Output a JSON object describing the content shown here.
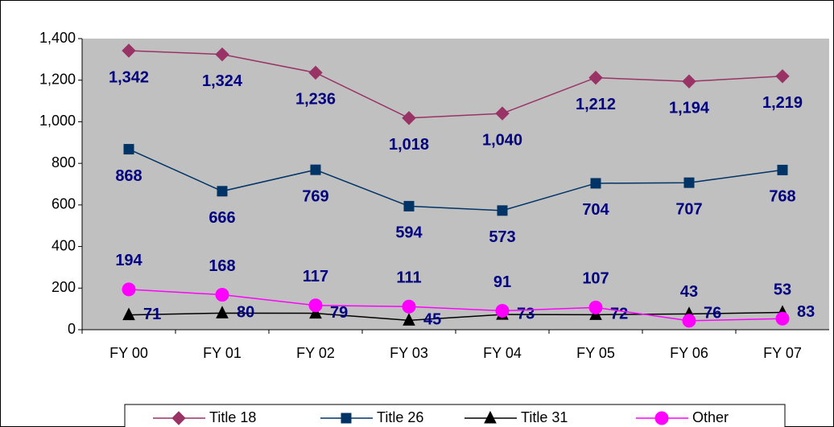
{
  "chart_data": {
    "type": "line",
    "categories": [
      "FY 00",
      "FY 01",
      "FY 02",
      "FY 03",
      "FY 04",
      "FY 05",
      "FY 06",
      "FY 07"
    ],
    "ylim": [
      0,
      1400
    ],
    "yticks": [
      0,
      200,
      400,
      600,
      800,
      {
        "value": 1000,
        "label": "1,000"
      },
      {
        "value": 1200,
        "label": "1,200"
      },
      {
        "value": 1400,
        "label": "1,400"
      }
    ],
    "grid": false,
    "plot_background": "#c0c0c0",
    "legend": "bottom",
    "series": [
      {
        "name": "Title 18",
        "color": "#993366",
        "marker": "diamond",
        "label_position": "below",
        "values": [
          1342,
          1324,
          1236,
          1018,
          1040,
          1212,
          1194,
          1219
        ],
        "value_labels": [
          "1,342",
          "1,324",
          "1,236",
          "1,018",
          "1,040",
          "1,212",
          "1,194",
          "1,219"
        ]
      },
      {
        "name": "Title 26",
        "color": "#003366",
        "marker": "square",
        "label_position": "below",
        "values": [
          868,
          666,
          769,
          594,
          573,
          704,
          707,
          768
        ]
      },
      {
        "name": "Title 31",
        "color": "#000000",
        "marker": "triangle",
        "label_position": "right",
        "values": [
          71,
          80,
          79,
          45,
          73,
          72,
          76,
          83
        ]
      },
      {
        "name": "Other",
        "color": "#ff00ff",
        "marker": "circle",
        "label_position": "above",
        "values": [
          194,
          168,
          117,
          111,
          91,
          107,
          43,
          53
        ]
      }
    ]
  }
}
